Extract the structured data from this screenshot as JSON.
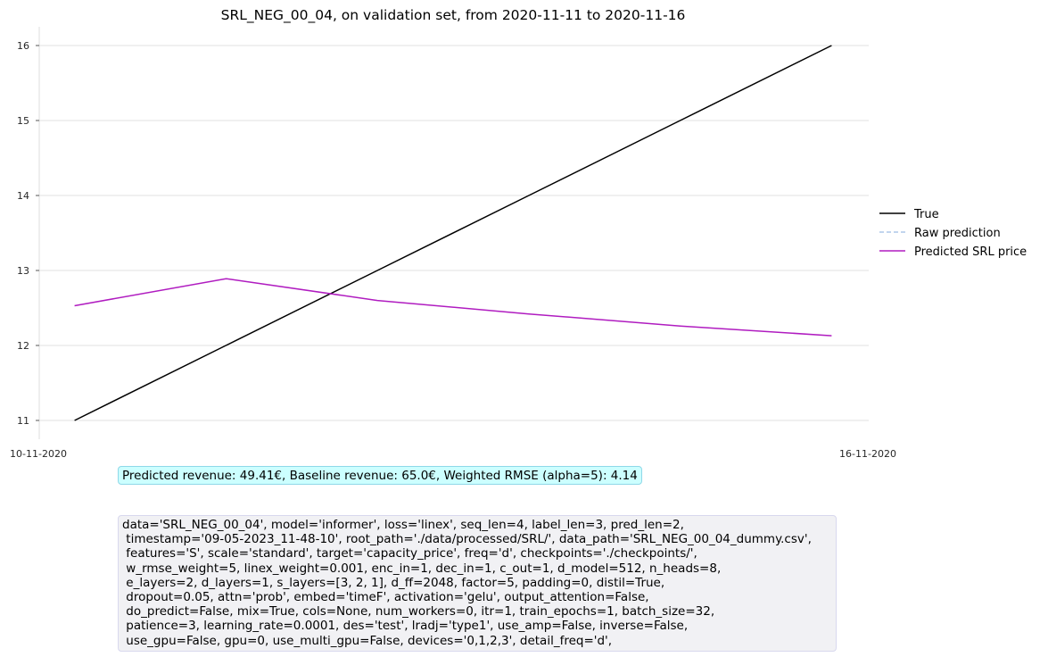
{
  "chart_data": {
    "type": "line",
    "title": "SRL_NEG_00_04, on validation set, from 2020-11-11 to 2020-11-16",
    "xlabel": "",
    "ylabel": "",
    "x": [
      "2020-11-11",
      "2020-11-12",
      "2020-11-13",
      "2020-11-14",
      "2020-11-15",
      "2020-11-16"
    ],
    "x_tick_labels": [
      {
        "x": "2020-11-10",
        "label": "10-11-2020"
      },
      {
        "x": "2020-11-16",
        "label": "16-11-2020"
      }
    ],
    "xlim": [
      "2020-11-10",
      "2020-11-16"
    ],
    "ylim": [
      10.75,
      16.25
    ],
    "yticks": [
      11,
      12,
      13,
      14,
      15,
      16
    ],
    "grid": "horizontal",
    "legend_position": "right",
    "series": [
      {
        "name": "True",
        "color": "#000000",
        "style": "solid",
        "values": [
          11,
          12,
          13,
          14,
          15,
          16
        ]
      },
      {
        "name": "Raw prediction",
        "color": "#aec7e8",
        "style": "dashed",
        "values": [
          null,
          null,
          null,
          null,
          null,
          null
        ]
      },
      {
        "name": "Predicted SRL price",
        "color": "#b01cc0",
        "style": "solid",
        "values": [
          12.53,
          12.89,
          12.6,
          12.42,
          12.26,
          12.13
        ]
      }
    ]
  },
  "metrics_text": "Predicted revenue: 49.41€, Baseline revenue: 65.0€, Weighted RMSE (alpha=5): 4.14",
  "config_lines": [
    "data='SRL_NEG_00_04', model='informer', loss='linex', seq_len=4, label_len=3, pred_len=2,",
    " timestamp='09-05-2023_11-48-10', root_path='./data/processed/SRL/', data_path='SRL_NEG_00_04_dummy.csv',",
    " features='S', scale='standard', target='capacity_price', freq='d', checkpoints='./checkpoints/',",
    " w_rmse_weight=5, linex_weight=0.001, enc_in=1, dec_in=1, c_out=1, d_model=512, n_heads=8,",
    " e_layers=2, d_layers=1, s_layers=[3, 2, 1], d_ff=2048, factor=5, padding=0, distil=True,",
    " dropout=0.05, attn='prob', embed='timeF', activation='gelu', output_attention=False,",
    " do_predict=False, mix=True, cols=None, num_workers=0, itr=1, train_epochs=1, batch_size=32,",
    " patience=3, learning_rate=0.0001, des='test', lradj='type1', use_amp=False, inverse=False,",
    " use_gpu=False, gpu=0, use_multi_gpu=False, devices='0,1,2,3', detail_freq='d',"
  ]
}
